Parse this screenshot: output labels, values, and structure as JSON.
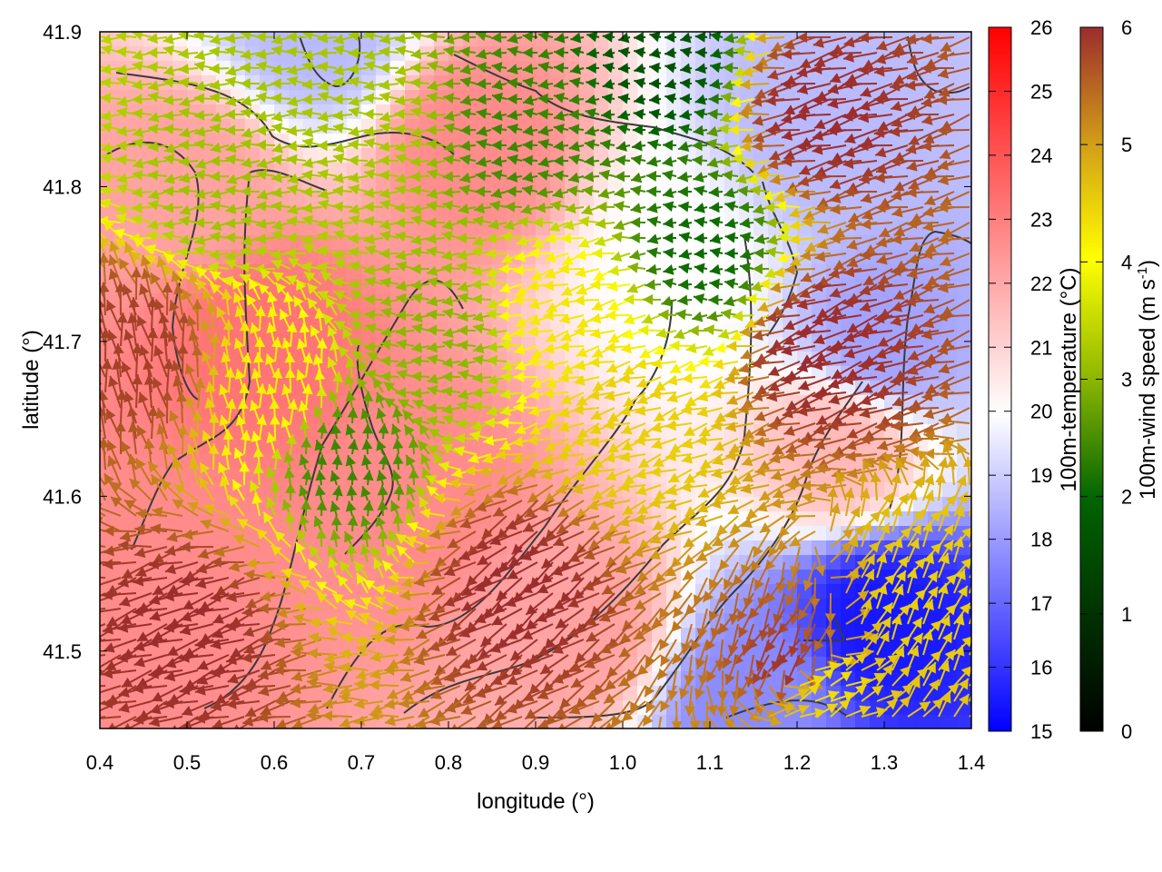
{
  "chart_data": {
    "type": "heatmap",
    "title": "",
    "xlabel": "longitude (°)",
    "ylabel": "latitude (°)",
    "xlim": [
      0.4,
      1.4
    ],
    "ylim": [
      41.45,
      41.9
    ],
    "xticks": [
      "0.4",
      "0.5",
      "0.6",
      "0.7",
      "0.8",
      "0.9",
      "1.0",
      "1.1",
      "1.2",
      "1.3",
      "1.4"
    ],
    "yticks": [
      "41.5",
      "41.6",
      "41.7",
      "41.8",
      "41.9"
    ],
    "grid": false,
    "colorbars": [
      {
        "label": "100m-temperature (°C)",
        "range": [
          15,
          26
        ],
        "ticks": [
          "15",
          "16",
          "17",
          "18",
          "19",
          "20",
          "21",
          "22",
          "23",
          "24",
          "25",
          "26"
        ],
        "colors": [
          "#0000ff",
          "#ffffff",
          "#ff0000"
        ]
      },
      {
        "label": "100m-wind speed (m s",
        "label_sup": "-1",
        "label_close": ")",
        "range": [
          0,
          6
        ],
        "ticks": [
          "0",
          "1",
          "2",
          "3",
          "4",
          "5",
          "6"
        ],
        "colors": [
          "#000000",
          "#006400",
          "#8db600",
          "#ffff00",
          "#d4a017",
          "#9b2d2d"
        ]
      }
    ],
    "temperature_centers": [
      {
        "lon": 0.5,
        "lat": 41.8,
        "value": 22.5
      },
      {
        "lon": 0.58,
        "lat": 41.7,
        "value": 23.5
      },
      {
        "lon": 0.45,
        "lat": 41.55,
        "value": 23
      },
      {
        "lon": 0.83,
        "lat": 41.83,
        "value": 23
      },
      {
        "lon": 0.78,
        "lat": 41.6,
        "value": 23
      },
      {
        "lon": 0.95,
        "lat": 41.52,
        "value": 22.5
      },
      {
        "lon": 1.06,
        "lat": 41.75,
        "value": 20.5
      },
      {
        "lon": 1.3,
        "lat": 41.52,
        "value": 15.5
      },
      {
        "lon": 1.3,
        "lat": 41.7,
        "value": 18.5
      },
      {
        "lon": 1.22,
        "lat": 41.84,
        "value": 19
      },
      {
        "lon": 0.65,
        "lat": 41.9,
        "value": 19
      },
      {
        "lon": 1.15,
        "lat": 41.47,
        "value": 18
      },
      {
        "lon": 1.25,
        "lat": 41.63,
        "value": 22
      }
    ],
    "wind_zones": [
      {
        "lon": 0.55,
        "lat": 41.8,
        "speed": 2.6,
        "direction_deg": 185
      },
      {
        "lon": 0.45,
        "lat": 41.68,
        "speed": 5.8,
        "direction_deg": 100
      },
      {
        "lon": 0.6,
        "lat": 41.66,
        "speed": 3.8,
        "direction_deg": 95
      },
      {
        "lon": 0.68,
        "lat": 41.62,
        "speed": 1.7,
        "direction_deg": 95
      },
      {
        "lon": 0.8,
        "lat": 41.7,
        "speed": 2.4,
        "direction_deg": 180
      },
      {
        "lon": 0.72,
        "lat": 41.84,
        "speed": 2.7,
        "direction_deg": 180
      },
      {
        "lon": 0.9,
        "lat": 41.84,
        "speed": 1.7,
        "direction_deg": 180
      },
      {
        "lon": 0.95,
        "lat": 41.72,
        "speed": 3.9,
        "direction_deg": 195
      },
      {
        "lon": 1.02,
        "lat": 41.65,
        "speed": 4.2,
        "direction_deg": 200
      },
      {
        "lon": 1.1,
        "lat": 41.76,
        "speed": 1.3,
        "direction_deg": 180
      },
      {
        "lon": 1.05,
        "lat": 41.88,
        "speed": 1.0,
        "direction_deg": 180
      },
      {
        "lon": 1.25,
        "lat": 41.85,
        "speed": 6.0,
        "direction_deg": 195
      },
      {
        "lon": 1.25,
        "lat": 41.7,
        "speed": 6.0,
        "direction_deg": 200
      },
      {
        "lon": 0.52,
        "lat": 41.52,
        "speed": 6.0,
        "direction_deg": 200
      },
      {
        "lon": 0.9,
        "lat": 41.55,
        "speed": 6.0,
        "direction_deg": 215
      },
      {
        "lon": 1.2,
        "lat": 41.5,
        "speed": 5.9,
        "direction_deg": 240
      },
      {
        "lon": 1.32,
        "lat": 41.52,
        "speed": 4.2,
        "direction_deg": 60
      },
      {
        "lon": 1.22,
        "lat": 41.48,
        "speed": 4.0,
        "direction_deg": 30
      }
    ]
  }
}
